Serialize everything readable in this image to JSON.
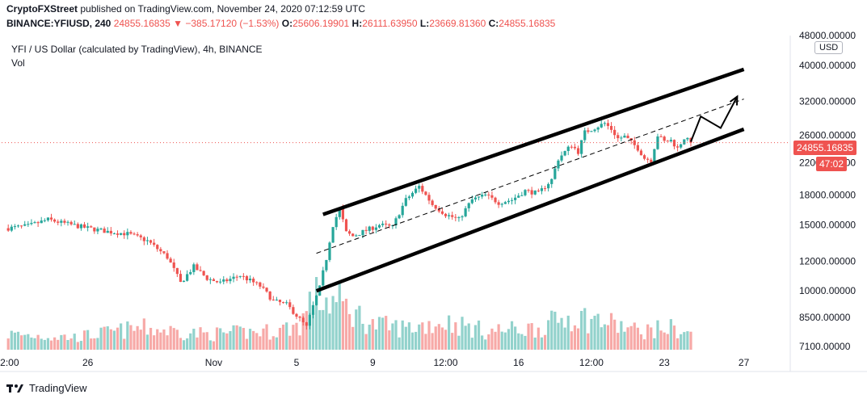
{
  "header": {
    "publisher": "CryptoFXStreet",
    "published_text": "published on TradingView.com, November 24, 2020 07:12:59 UTC",
    "symbol_line": "BINANCE:YFIUSD, 240",
    "price": "24855.16835",
    "change": "▼ −385.17120 (−1.53%)",
    "open_label": "O:",
    "open": "25606.19901",
    "high_label": "H:",
    "high": "26111.63950",
    "low_label": "L:",
    "low": "23669.81360",
    "close_label": "C:",
    "close": "24855.16835"
  },
  "legend": {
    "title": "YFI / US Dollar (calculated by TradingView), 4h, BINANCE",
    "vol": "Vol"
  },
  "price_axis": {
    "currency": "USD",
    "last_price": "24855.16835",
    "countdown": "47:02",
    "colors": {
      "down": "#ef5350",
      "up": "#26a69a",
      "last_price_bg": "#ef5350"
    }
  },
  "footer": {
    "brand": "TradingView"
  },
  "chart_data": {
    "type": "candlestick",
    "y_scale": "log",
    "ylim": [
      6900,
      48000
    ],
    "y_ticks": [
      {
        "value": 48000,
        "label": "48000.00000"
      },
      {
        "value": 40000,
        "label": "40000.00000"
      },
      {
        "value": 32000,
        "label": "32000.00000"
      },
      {
        "value": 26000,
        "label": "26000.00000"
      },
      {
        "value": 22000,
        "label": "22000.00000"
      },
      {
        "value": 18000,
        "label": "18000.00000"
      },
      {
        "value": 15000,
        "label": "15000.00000"
      },
      {
        "value": 12000,
        "label": "12000.00000"
      },
      {
        "value": 10000,
        "label": "10000.00000"
      },
      {
        "value": 8500,
        "label": "8500.00000"
      },
      {
        "value": 7100,
        "label": "7100.00000"
      }
    ],
    "x_ticks": [
      {
        "label": "2:00",
        "x": 0.2
      },
      {
        "label": "26",
        "x": 12
      },
      {
        "label": "Nov",
        "x": 31
      },
      {
        "label": "5",
        "x": 43.5
      },
      {
        "label": "9",
        "x": 55
      },
      {
        "label": "12:00",
        "x": 66
      },
      {
        "label": "16",
        "x": 77
      },
      {
        "label": "12:00",
        "x": 88
      },
      {
        "label": "23",
        "x": 99
      },
      {
        "label": "27",
        "x": 111
      }
    ],
    "x_range": [
      -1,
      118
    ],
    "price_anchors": [
      [
        0,
        14700
      ],
      [
        3,
        14900
      ],
      [
        6,
        15500
      ],
      [
        8,
        15200
      ],
      [
        12,
        14700
      ],
      [
        15,
        14400
      ],
      [
        18,
        14200
      ],
      [
        21,
        13600
      ],
      [
        24,
        12300
      ],
      [
        26,
        10500
      ],
      [
        28,
        11600
      ],
      [
        30,
        10800
      ],
      [
        32,
        10500
      ],
      [
        35,
        11000
      ],
      [
        38,
        10300
      ],
      [
        40,
        9400
      ],
      [
        42,
        9200
      ],
      [
        44,
        8400
      ],
      [
        45,
        8000
      ],
      [
        46,
        9100
      ],
      [
        47,
        10200
      ],
      [
        48,
        12200
      ],
      [
        49,
        15000
      ],
      [
        50,
        16500
      ],
      [
        51,
        14300
      ],
      [
        52,
        14000
      ],
      [
        54,
        14500
      ],
      [
        56,
        15000
      ],
      [
        58,
        14800
      ],
      [
        60,
        17500
      ],
      [
        62,
        19000
      ],
      [
        64,
        17000
      ],
      [
        66,
        16000
      ],
      [
        68,
        15500
      ],
      [
        70,
        17500
      ],
      [
        72,
        18000
      ],
      [
        74,
        17200
      ],
      [
        76,
        17500
      ],
      [
        78,
        18500
      ],
      [
        80,
        18200
      ],
      [
        82,
        19800
      ],
      [
        83,
        22500
      ],
      [
        85,
        24500
      ],
      [
        86,
        23500
      ],
      [
        87,
        26500
      ],
      [
        89,
        27500
      ],
      [
        90,
        28000
      ],
      [
        91,
        27000
      ],
      [
        92,
        25500
      ],
      [
        93,
        25800
      ],
      [
        95,
        24000
      ],
      [
        96,
        22600
      ],
      [
        97,
        22300
      ],
      [
        98,
        26000
      ],
      [
        99,
        25000
      ],
      [
        100,
        25200
      ],
      [
        101,
        24000
      ],
      [
        102,
        25600
      ],
      [
        103,
        24855
      ]
    ],
    "volume_anchors": [
      [
        0,
        0.25
      ],
      [
        10,
        0.2
      ],
      [
        20,
        0.35
      ],
      [
        30,
        0.25
      ],
      [
        40,
        0.3
      ],
      [
        44,
        0.4
      ],
      [
        46,
        0.85
      ],
      [
        50,
        0.75
      ],
      [
        55,
        0.4
      ],
      [
        60,
        0.35
      ],
      [
        66,
        0.45
      ],
      [
        72,
        0.3
      ],
      [
        80,
        0.35
      ],
      [
        85,
        0.55
      ],
      [
        90,
        0.45
      ],
      [
        95,
        0.3
      ],
      [
        100,
        0.35
      ],
      [
        103,
        0.25
      ]
    ],
    "last_close": 24855.16835,
    "drawings": {
      "channel_upper": [
        [
          47.5,
          16000
        ],
        [
          111,
          39000
        ]
      ],
      "channel_lower": [
        [
          46.5,
          10000
        ],
        [
          111,
          27000
        ]
      ],
      "channel_mid_dashed": [
        [
          46.5,
          12600
        ],
        [
          111,
          32500
        ]
      ],
      "projection_arrow": [
        [
          103,
          25000
        ],
        [
          104.5,
          29200
        ],
        [
          107.5,
          27200
        ],
        [
          110,
          33000
        ]
      ]
    }
  }
}
